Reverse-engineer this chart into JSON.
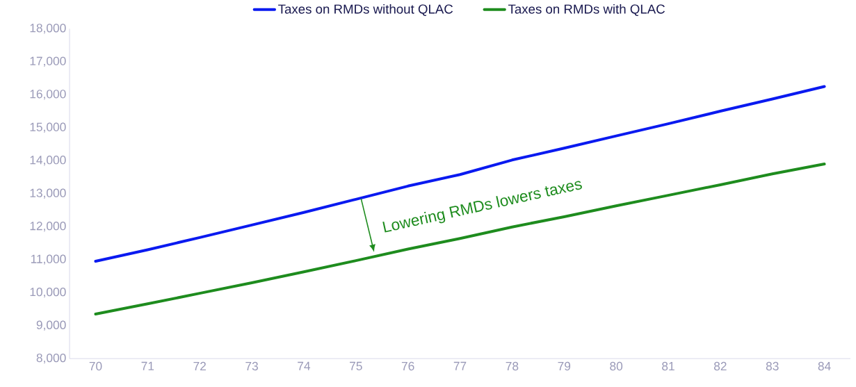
{
  "chart_data": {
    "type": "line",
    "categories": [
      "70",
      "71",
      "72",
      "73",
      "74",
      "75",
      "76",
      "77",
      "78",
      "79",
      "80",
      "81",
      "82",
      "83",
      "84"
    ],
    "series": [
      {
        "name": "Taxes on RMDs without QLAC",
        "color": "#0a1af0",
        "values": [
          10950,
          11300,
          11670,
          12050,
          12430,
          12830,
          13230,
          13580,
          14020,
          14380,
          14750,
          15120,
          15500,
          15870,
          16250
        ]
      },
      {
        "name": "Taxes on RMDs with QLAC",
        "color": "#1e8c1e",
        "values": [
          9350,
          9660,
          9980,
          10300,
          10630,
          10970,
          11320,
          11640,
          11990,
          12300,
          12630,
          12950,
          13270,
          13600,
          13900
        ]
      }
    ],
    "ylim": [
      8000,
      18000
    ],
    "yticks": [
      {
        "value": 8000,
        "label": "8,000"
      },
      {
        "value": 9000,
        "label": "9,000"
      },
      {
        "value": 10000,
        "label": "10,000"
      },
      {
        "value": 11000,
        "label": "11,000"
      },
      {
        "value": 12000,
        "label": "12,000"
      },
      {
        "value": 13000,
        "label": "13,000"
      },
      {
        "value": 14000,
        "label": "14,000"
      },
      {
        "value": 15000,
        "label": "15,000"
      },
      {
        "value": 16000,
        "label": "16,000"
      },
      {
        "value": 17000,
        "label": "17,000"
      },
      {
        "value": 18000,
        "label": "18,000"
      }
    ],
    "annotations": [
      "Lowering RMDs lowers taxes"
    ],
    "legend": "top",
    "grid": false,
    "marker": "none",
    "line_style": "solid"
  }
}
